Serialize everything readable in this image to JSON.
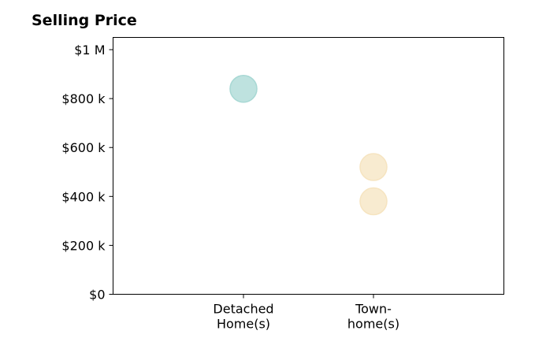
{
  "chart_data": {
    "type": "scatter",
    "title": "Selling Price",
    "xlabel": "",
    "ylabel": "",
    "categories": [
      [
        "Detached",
        "Home(s)"
      ],
      [
        "Town-",
        "home(s)"
      ]
    ],
    "ylim": [
      0,
      1050000
    ],
    "yticks": [
      {
        "value": 0,
        "label": "$0"
      },
      {
        "value": 200000,
        "label": "$200 k"
      },
      {
        "value": 400000,
        "label": "$400 k"
      },
      {
        "value": 600000,
        "label": "$600 k"
      },
      {
        "value": 800000,
        "label": "$800 k"
      },
      {
        "value": 1000000,
        "label": "$1 M"
      }
    ],
    "series": [
      {
        "category_index": 0,
        "values": [
          840000
        ],
        "color": "#a8d8d4"
      },
      {
        "category_index": 1,
        "values": [
          520000,
          380000
        ],
        "color": "#f6e4c0"
      }
    ],
    "grid": false,
    "legend": "none"
  }
}
